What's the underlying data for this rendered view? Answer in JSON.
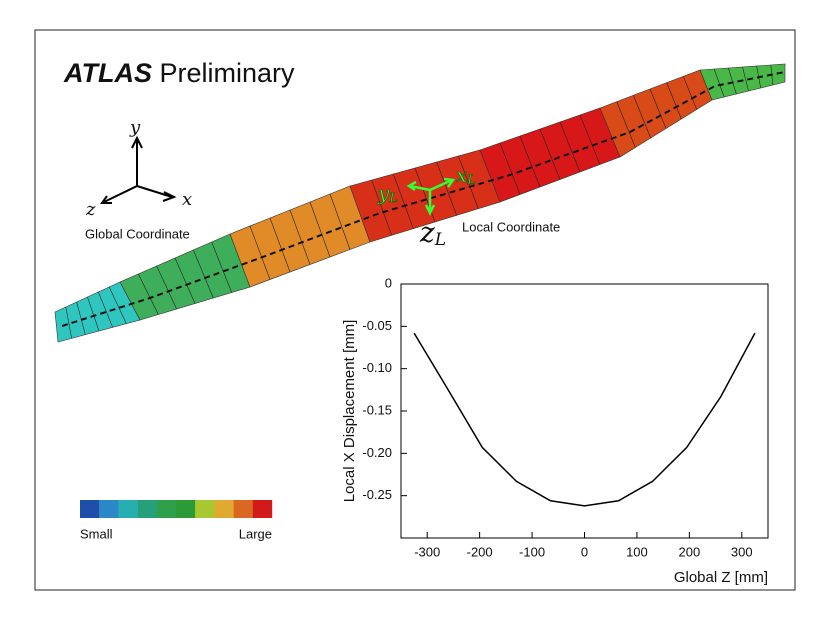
{
  "title_bold": "ATLAS",
  "title_rest": "Preliminary",
  "global_axes": {
    "y": "y",
    "x": "x",
    "z": "z",
    "label": "Global Coordinate"
  },
  "local_axes": {
    "y": "y",
    "x": "x",
    "z": "z",
    "subscript": "L",
    "label": "Local Coordinate"
  },
  "colorbar": {
    "low": "Small",
    "high": "Large"
  },
  "chart_data": {
    "type": "line",
    "xlabel": "Global Z [mm]",
    "ylabel": "Local X Displacement [mm]",
    "x": [
      -325,
      -260,
      -195,
      -130,
      -65,
      0,
      65,
      130,
      195,
      260,
      325
    ],
    "series": [
      {
        "name": "displacement",
        "color": "#000000",
        "values": [
          -0.058,
          -0.125,
          -0.193,
          -0.233,
          -0.256,
          -0.262,
          -0.256,
          -0.233,
          -0.193,
          -0.133,
          -0.058
        ]
      }
    ],
    "xlim": [
      -350,
      350
    ],
    "xticks": [
      -300,
      -200,
      -100,
      0,
      100,
      200,
      300
    ],
    "ylim": [
      -0.3,
      0
    ],
    "yticks": [
      0,
      -0.05,
      {
        "value": -0.1,
        "label": "-0.10"
      },
      -0.15,
      {
        "value": -0.2,
        "label": "-0.20"
      },
      -0.25
    ]
  }
}
